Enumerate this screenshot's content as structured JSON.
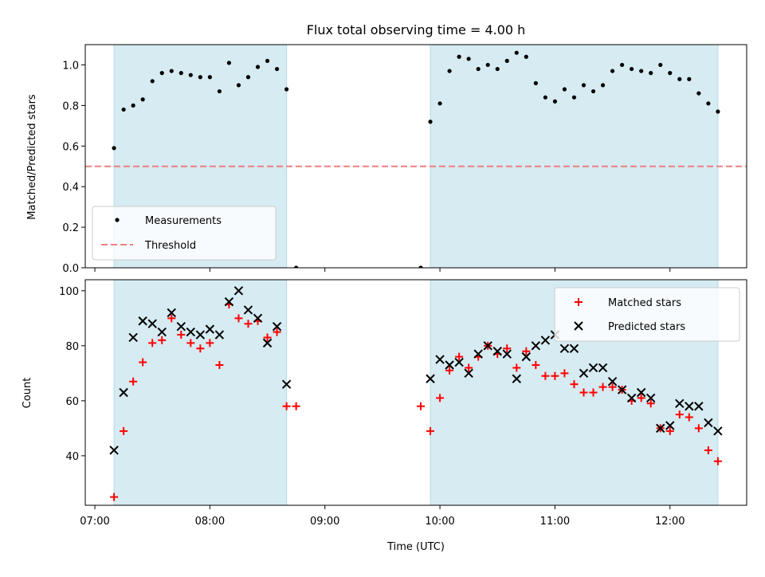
{
  "chart_data": [
    {
      "type": "scatter",
      "title": "Flux total observing time = 4.00 h",
      "ylabel": "Matched/Predicted stars",
      "xlabel": "",
      "ylim": [
        0,
        1.1
      ],
      "yticks": [
        "0.0",
        "0.2",
        "0.4",
        "0.6",
        "0.8",
        "1.0"
      ],
      "legend_position": "lower-left",
      "threshold": 0.5,
      "shaded_intervals": [
        [
          "07:10",
          "08:40"
        ],
        [
          "09:55",
          "12:25"
        ]
      ],
      "series": [
        {
          "name": "Measurements",
          "marker": "dot",
          "color": "#000000",
          "points": [
            [
              "07:10",
              0.59
            ],
            [
              "07:15",
              0.78
            ],
            [
              "07:20",
              0.8
            ],
            [
              "07:25",
              0.83
            ],
            [
              "07:30",
              0.92
            ],
            [
              "07:35",
              0.96
            ],
            [
              "07:40",
              0.97
            ],
            [
              "07:45",
              0.96
            ],
            [
              "07:50",
              0.95
            ],
            [
              "07:55",
              0.94
            ],
            [
              "08:00",
              0.94
            ],
            [
              "08:05",
              0.87
            ],
            [
              "08:10",
              1.01
            ],
            [
              "08:15",
              0.9
            ],
            [
              "08:20",
              0.94
            ],
            [
              "08:25",
              0.99
            ],
            [
              "08:30",
              1.02
            ],
            [
              "08:35",
              0.98
            ],
            [
              "08:40",
              0.88
            ],
            [
              "08:45",
              0.0
            ],
            [
              "09:50",
              0.0
            ],
            [
              "09:55",
              0.72
            ],
            [
              "10:00",
              0.81
            ],
            [
              "10:05",
              0.97
            ],
            [
              "10:10",
              1.04
            ],
            [
              "10:15",
              1.03
            ],
            [
              "10:20",
              0.98
            ],
            [
              "10:25",
              1.0
            ],
            [
              "10:30",
              0.98
            ],
            [
              "10:35",
              1.02
            ],
            [
              "10:40",
              1.06
            ],
            [
              "10:45",
              1.04
            ],
            [
              "10:50",
              0.91
            ],
            [
              "10:55",
              0.84
            ],
            [
              "11:00",
              0.82
            ],
            [
              "11:05",
              0.88
            ],
            [
              "11:10",
              0.84
            ],
            [
              "11:15",
              0.9
            ],
            [
              "11:20",
              0.87
            ],
            [
              "11:25",
              0.9
            ],
            [
              "11:30",
              0.97
            ],
            [
              "11:35",
              1.0
            ],
            [
              "11:40",
              0.98
            ],
            [
              "11:45",
              0.97
            ],
            [
              "11:50",
              0.96
            ],
            [
              "11:55",
              1.0
            ],
            [
              "12:00",
              0.96
            ],
            [
              "12:05",
              0.93
            ],
            [
              "12:10",
              0.93
            ],
            [
              "12:15",
              0.86
            ],
            [
              "12:20",
              0.81
            ],
            [
              "12:25",
              0.77
            ]
          ]
        },
        {
          "name": "Threshold",
          "style": "dashed-line",
          "color": "#f08080"
        }
      ],
      "colors": {
        "shade": "#add8e6",
        "threshold": "#f08080"
      }
    },
    {
      "type": "scatter",
      "title": "",
      "ylabel": "Count",
      "xlabel": "Time (UTC)",
      "ylim": [
        22,
        104
      ],
      "yticks": [
        "40",
        "60",
        "80",
        "100"
      ],
      "xticks": [
        "07:00",
        "08:00",
        "09:00",
        "10:00",
        "11:00",
        "12:00"
      ],
      "xlim": [
        "06:55",
        "12:40"
      ],
      "legend_position": "upper-right",
      "shaded_intervals": [
        [
          "07:10",
          "08:40"
        ],
        [
          "09:55",
          "12:25"
        ]
      ],
      "series": [
        {
          "name": "Matched stars",
          "marker": "plus",
          "color": "#ff0000",
          "points": [
            [
              "07:10",
              25
            ],
            [
              "07:15",
              49
            ],
            [
              "07:20",
              67
            ],
            [
              "07:25",
              74
            ],
            [
              "07:30",
              81
            ],
            [
              "07:35",
              82
            ],
            [
              "07:40",
              90
            ],
            [
              "07:45",
              84
            ],
            [
              "07:50",
              81
            ],
            [
              "07:55",
              79
            ],
            [
              "08:00",
              81
            ],
            [
              "08:05",
              73
            ],
            [
              "08:10",
              95
            ],
            [
              "08:15",
              90
            ],
            [
              "08:20",
              88
            ],
            [
              "08:25",
              89
            ],
            [
              "08:30",
              83
            ],
            [
              "08:35",
              85
            ],
            [
              "08:40",
              58
            ],
            [
              "08:45",
              58
            ],
            [
              "09:50",
              58
            ],
            [
              "09:55",
              49
            ],
            [
              "10:00",
              61
            ],
            [
              "10:05",
              71
            ],
            [
              "10:10",
              76
            ],
            [
              "10:15",
              72
            ],
            [
              "10:20",
              76
            ],
            [
              "10:25",
              80
            ],
            [
              "10:30",
              77
            ],
            [
              "10:35",
              79
            ],
            [
              "10:40",
              72
            ],
            [
              "10:45",
              78
            ],
            [
              "10:50",
              73
            ],
            [
              "10:55",
              69
            ],
            [
              "11:00",
              69
            ],
            [
              "11:05",
              70
            ],
            [
              "11:10",
              66
            ],
            [
              "11:15",
              63
            ],
            [
              "11:20",
              63
            ],
            [
              "11:25",
              65
            ],
            [
              "11:30",
              65
            ],
            [
              "11:35",
              64
            ],
            [
              "11:40",
              60
            ],
            [
              "11:45",
              61
            ],
            [
              "11:50",
              59
            ],
            [
              "11:55",
              50
            ],
            [
              "12:00",
              49
            ],
            [
              "12:05",
              55
            ],
            [
              "12:10",
              54
            ],
            [
              "12:15",
              50
            ],
            [
              "12:20",
              42
            ],
            [
              "12:25",
              38
            ]
          ]
        },
        {
          "name": "Predicted stars",
          "marker": "x",
          "color": "#000000",
          "points": [
            [
              "07:10",
              42
            ],
            [
              "07:15",
              63
            ],
            [
              "07:20",
              83
            ],
            [
              "07:25",
              89
            ],
            [
              "07:30",
              88
            ],
            [
              "07:35",
              85
            ],
            [
              "07:40",
              92
            ],
            [
              "07:45",
              87
            ],
            [
              "07:50",
              85
            ],
            [
              "07:55",
              84
            ],
            [
              "08:00",
              86
            ],
            [
              "08:05",
              84
            ],
            [
              "08:10",
              96
            ],
            [
              "08:15",
              100
            ],
            [
              "08:20",
              93
            ],
            [
              "08:25",
              90
            ],
            [
              "08:30",
              81
            ],
            [
              "08:35",
              87
            ],
            [
              "08:40",
              66
            ],
            [
              "09:55",
              68
            ],
            [
              "10:00",
              75
            ],
            [
              "10:05",
              73
            ],
            [
              "10:10",
              74
            ],
            [
              "10:15",
              70
            ],
            [
              "10:20",
              77
            ],
            [
              "10:25",
              80
            ],
            [
              "10:30",
              78
            ],
            [
              "10:35",
              77
            ],
            [
              "10:40",
              68
            ],
            [
              "10:45",
              76
            ],
            [
              "10:50",
              80
            ],
            [
              "10:55",
              82
            ],
            [
              "11:00",
              84
            ],
            [
              "11:05",
              79
            ],
            [
              "11:10",
              79
            ],
            [
              "11:15",
              70
            ],
            [
              "11:20",
              72
            ],
            [
              "11:25",
              72
            ],
            [
              "11:30",
              67
            ],
            [
              "11:35",
              64
            ],
            [
              "11:40",
              61
            ],
            [
              "11:45",
              63
            ],
            [
              "11:50",
              61
            ],
            [
              "11:55",
              50
            ],
            [
              "12:00",
              51
            ],
            [
              "12:05",
              59
            ],
            [
              "12:10",
              58
            ],
            [
              "12:15",
              58
            ],
            [
              "12:20",
              52
            ],
            [
              "12:25",
              49
            ]
          ]
        }
      ],
      "colors": {
        "shade": "#add8e6"
      }
    }
  ]
}
